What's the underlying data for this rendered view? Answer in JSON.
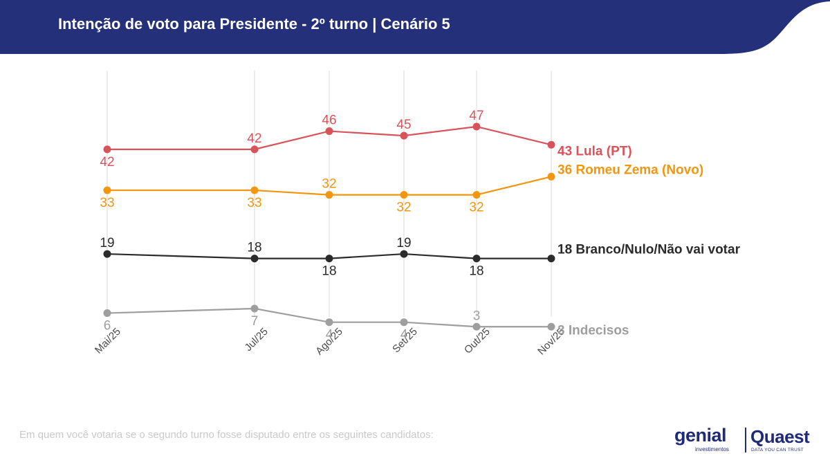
{
  "header": {
    "title": "Intenção de voto para Presidente - 2º turno | Cenário 5",
    "background_color": "#24307a"
  },
  "footer": {
    "note": "Em quem você votaria se o segundo turno fosse disputado entre os seguintes candidatos:"
  },
  "logos": {
    "genial": "genial",
    "genial_sub": "investimentos",
    "quaest": "Quaest",
    "quaest_sub": "DATA YOU CAN TRUST"
  },
  "chart_data": {
    "type": "line",
    "categories": [
      "Mai/25",
      "Jul/25",
      "Ago/25",
      "Set/25",
      "Out/25",
      "Nov/25"
    ],
    "grid": "vertical",
    "legend": "end-of-line labels",
    "series": [
      {
        "name": "Lula (PT)",
        "color": "#d9535b",
        "values": [
          42,
          42,
          46,
          45,
          47,
          43
        ],
        "end_label": "43 Lula (PT)",
        "label_pos": [
          "below",
          "above",
          "above",
          "above",
          "above",
          "none"
        ]
      },
      {
        "name": "Romeu Zema (Novo)",
        "color": "#f2960f",
        "values": [
          33,
          33,
          32,
          32,
          32,
          36
        ],
        "end_label": "36 Romeu Zema (Novo)",
        "label_pos": [
          "below",
          "below",
          "above",
          "below",
          "below",
          "none"
        ]
      },
      {
        "name": "Branco/Nulo/Não vai votar",
        "color": "#2b2b2b",
        "values": [
          19,
          18,
          18,
          19,
          18,
          18
        ],
        "end_label": "18 Branco/Nulo/Não vai votar",
        "label_pos": [
          "above",
          "above",
          "below",
          "above",
          "below",
          "none"
        ]
      },
      {
        "name": "Indecisos",
        "color": "#9e9e9e",
        "values": [
          6,
          7,
          4,
          4,
          3,
          3
        ],
        "end_label": "3 Indecisos",
        "label_pos": [
          "below",
          "below",
          "below",
          "below",
          "above",
          "none"
        ]
      }
    ]
  }
}
